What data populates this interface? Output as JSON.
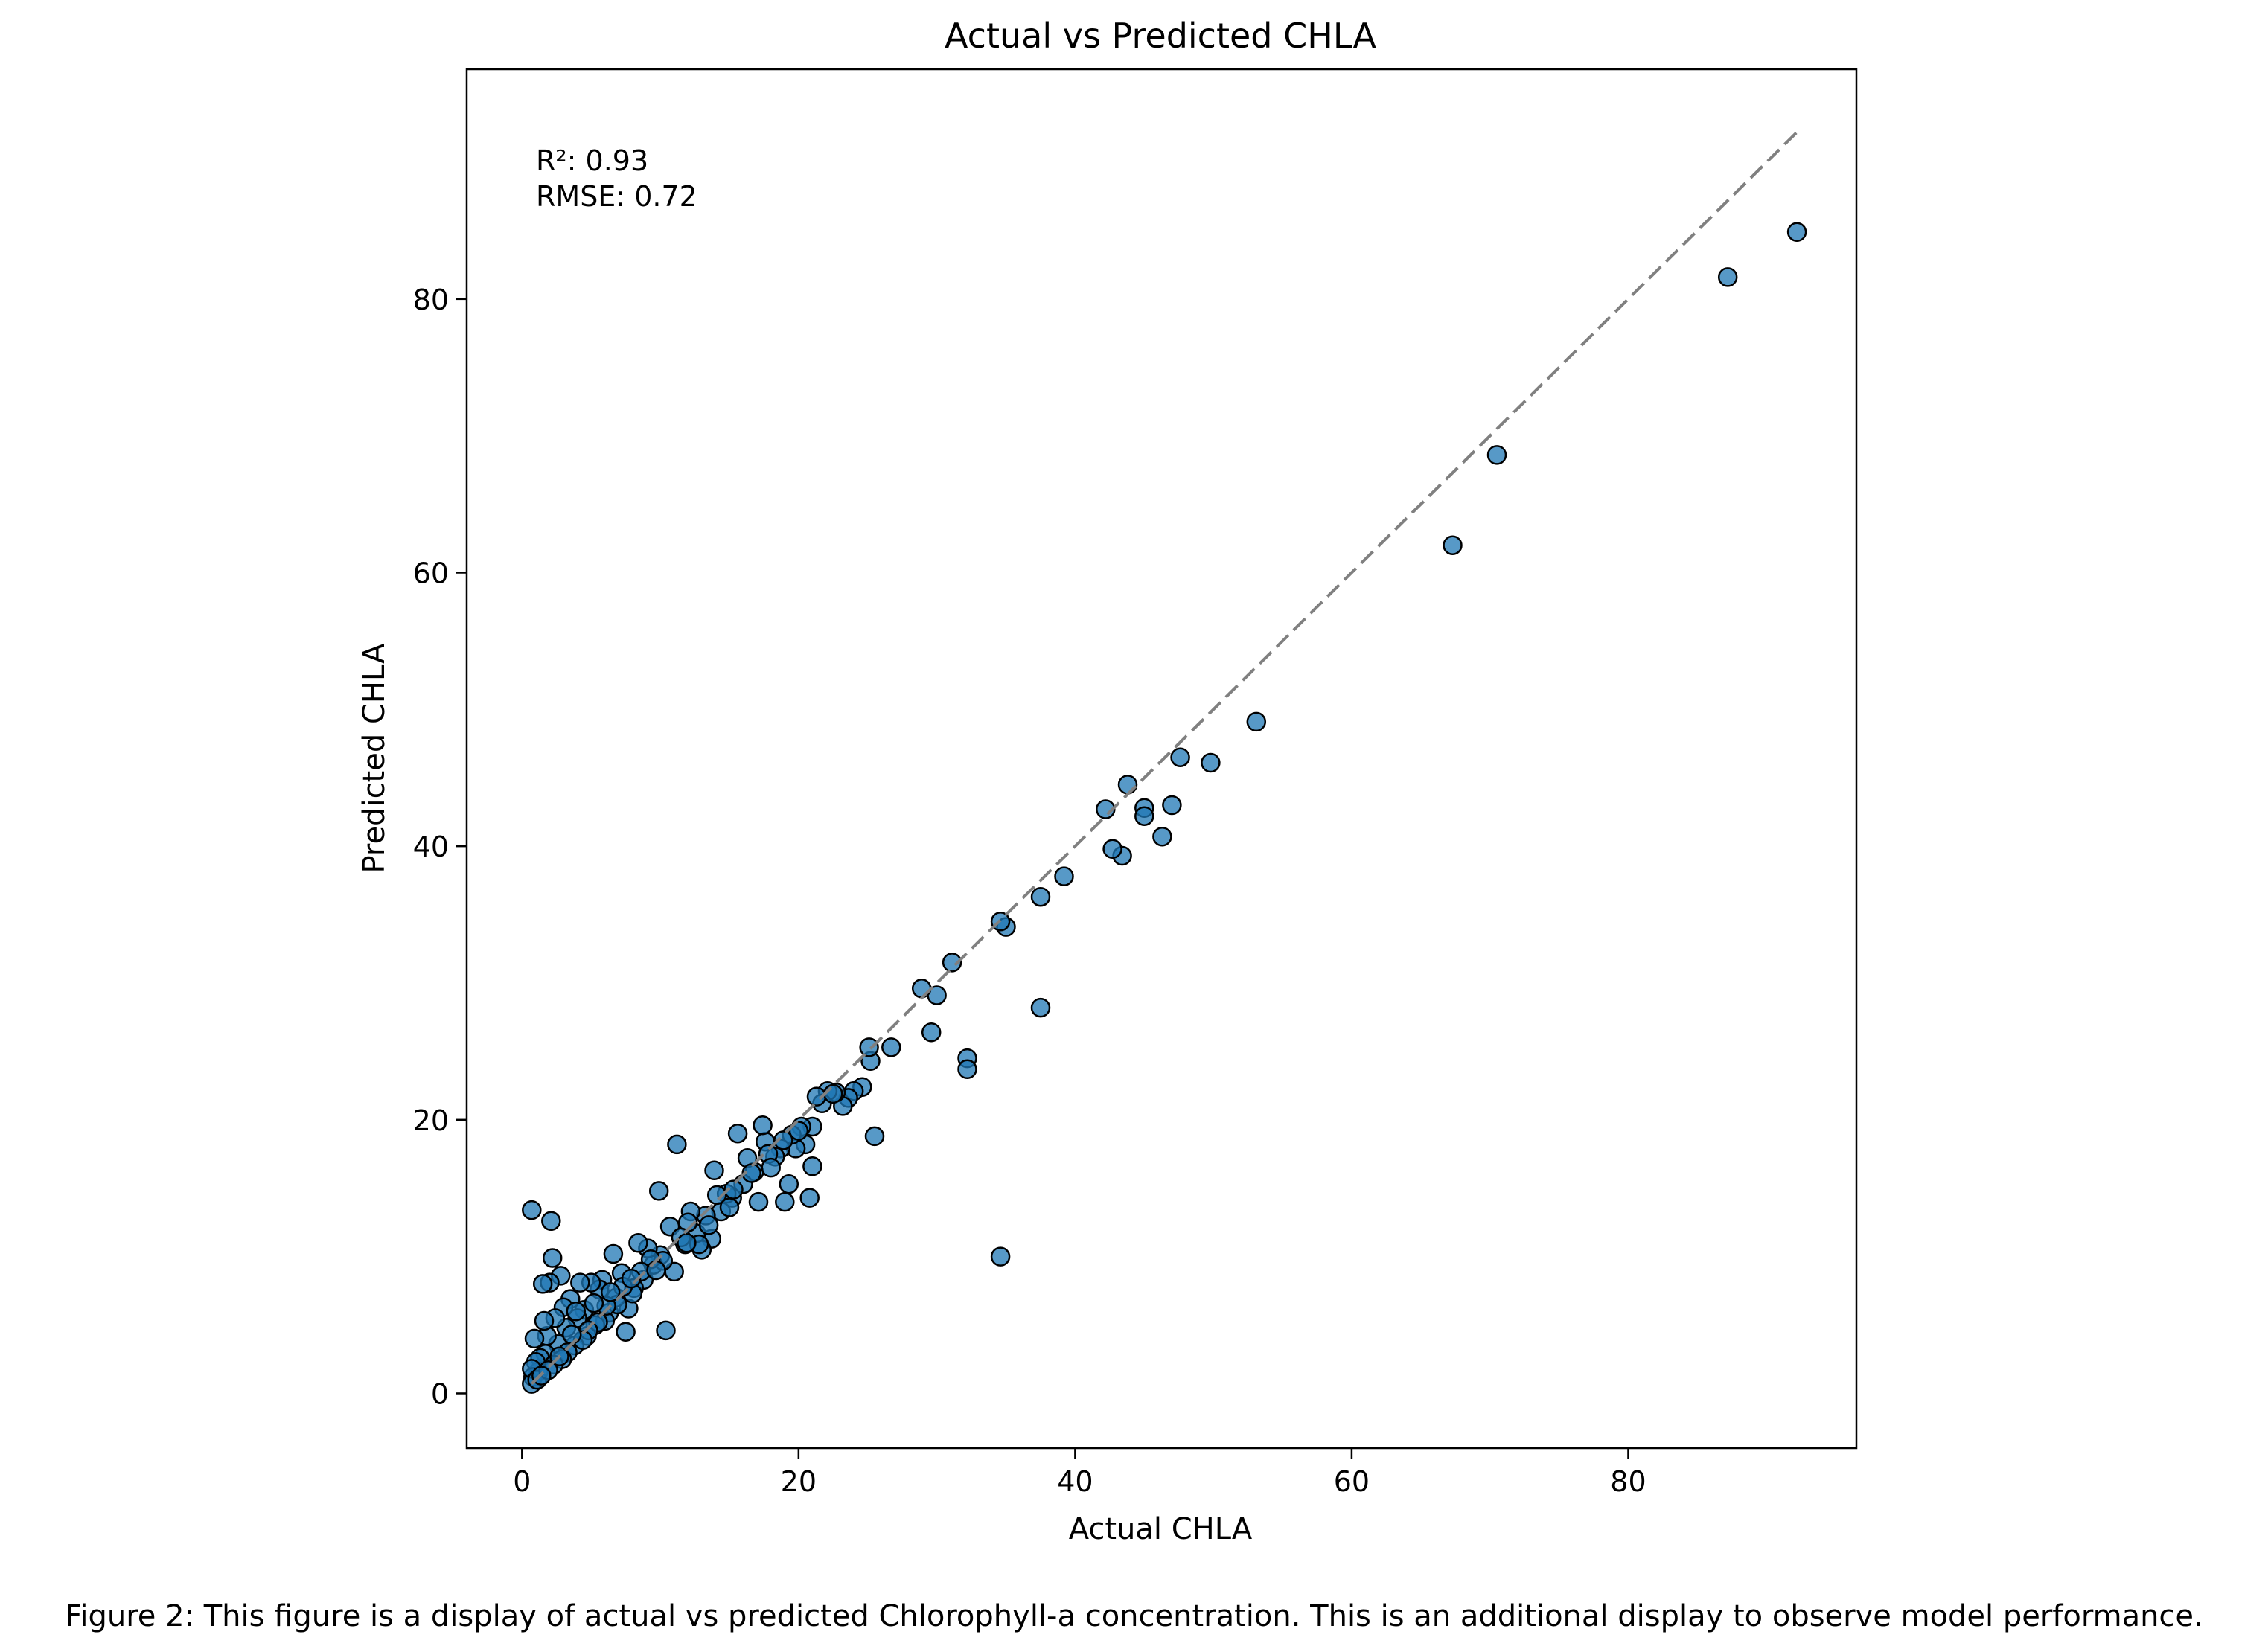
{
  "chart_data": {
    "type": "scatter",
    "title": "Actual vs Predicted CHLA",
    "xlabel": "Actual CHLA",
    "ylabel": "Predicted CHLA",
    "xlim": [
      -4,
      96.5
    ],
    "ylim": [
      -4,
      96.8
    ],
    "xticks": [
      0,
      20,
      40,
      60,
      80
    ],
    "yticks": [
      0,
      20,
      40,
      60,
      80
    ],
    "grid": false,
    "reference_line": {
      "style": "dashed",
      "color": "#808080",
      "from": [
        0.7,
        0.7
      ],
      "to": [
        92.2,
        92.2
      ]
    },
    "annotation": [
      "R²: 0.93",
      "RMSE: 0.72"
    ],
    "marker_color": "#1f77b4",
    "marker_edge": "#000000",
    "points": [
      [
        92.2,
        84.9
      ],
      [
        87.2,
        81.6
      ],
      [
        70.5,
        68.6
      ],
      [
        67.3,
        62.0
      ],
      [
        53.1,
        49.1
      ],
      [
        49.8,
        46.1
      ],
      [
        47.6,
        46.5
      ],
      [
        47.0,
        43.0
      ],
      [
        46.3,
        40.7
      ],
      [
        45.0,
        42.8
      ],
      [
        45.0,
        42.2
      ],
      [
        43.8,
        44.5
      ],
      [
        43.4,
        39.3
      ],
      [
        42.7,
        39.8
      ],
      [
        42.2,
        42.7
      ],
      [
        39.2,
        37.8
      ],
      [
        37.5,
        36.3
      ],
      [
        37.5,
        28.2
      ],
      [
        35.0,
        34.1
      ],
      [
        34.6,
        34.5
      ],
      [
        34.6,
        10.0
      ],
      [
        32.2,
        24.5
      ],
      [
        32.2,
        23.7
      ],
      [
        31.1,
        31.5
      ],
      [
        30.0,
        29.1
      ],
      [
        29.6,
        26.4
      ],
      [
        28.9,
        29.6
      ],
      [
        26.7,
        25.3
      ],
      [
        25.5,
        18.8
      ],
      [
        25.2,
        24.3
      ],
      [
        25.1,
        25.3
      ],
      [
        24.6,
        22.4
      ],
      [
        24.0,
        22.1
      ],
      [
        23.6,
        21.6
      ],
      [
        23.2,
        21.0
      ],
      [
        22.7,
        22.0
      ],
      [
        22.1,
        22.1
      ],
      [
        21.7,
        21.2
      ],
      [
        21.3,
        21.7
      ],
      [
        21.0,
        19.5
      ],
      [
        21.0,
        16.6
      ],
      [
        20.8,
        14.3
      ],
      [
        20.5,
        18.2
      ],
      [
        20.2,
        19.5
      ],
      [
        19.8,
        17.9
      ],
      [
        19.5,
        18.9
      ],
      [
        19.3,
        15.3
      ],
      [
        19.0,
        14.0
      ],
      [
        18.7,
        17.9
      ],
      [
        18.3,
        17.3
      ],
      [
        17.6,
        18.4
      ],
      [
        17.4,
        19.6
      ],
      [
        17.1,
        14.0
      ],
      [
        16.8,
        16.2
      ],
      [
        16.3,
        17.2
      ],
      [
        16.0,
        15.3
      ],
      [
        15.6,
        19.0
      ],
      [
        15.2,
        14.3
      ],
      [
        14.8,
        14.6
      ],
      [
        14.4,
        13.3
      ],
      [
        13.9,
        16.3
      ],
      [
        13.7,
        11.3
      ],
      [
        13.3,
        13.0
      ],
      [
        13.0,
        10.5
      ],
      [
        12.6,
        11.7
      ],
      [
        12.2,
        13.3
      ],
      [
        11.8,
        10.9
      ],
      [
        11.2,
        18.2
      ],
      [
        11.0,
        8.9
      ],
      [
        10.7,
        12.2
      ],
      [
        10.4,
        4.6
      ],
      [
        10.0,
        10.1
      ],
      [
        9.9,
        14.8
      ],
      [
        9.5,
        9.4
      ],
      [
        9.1,
        10.6
      ],
      [
        8.8,
        8.3
      ],
      [
        8.4,
        11.0
      ],
      [
        8.1,
        7.7
      ],
      [
        7.7,
        6.2
      ],
      [
        7.5,
        4.5
      ],
      [
        7.2,
        8.8
      ],
      [
        6.8,
        7.0
      ],
      [
        6.6,
        10.2
      ],
      [
        6.3,
        5.9
      ],
      [
        6.0,
        5.3
      ],
      [
        5.8,
        8.3
      ],
      [
        5.6,
        7.6
      ],
      [
        5.3,
        5.0
      ],
      [
        5.0,
        8.1
      ],
      [
        4.7,
        4.2
      ],
      [
        4.5,
        6.1
      ],
      [
        4.2,
        8.1
      ],
      [
        4.0,
        5.5
      ],
      [
        3.8,
        3.5
      ],
      [
        3.5,
        6.9
      ],
      [
        3.2,
        4.8
      ],
      [
        3.0,
        6.3
      ],
      [
        2.8,
        8.6
      ],
      [
        2.6,
        3.6
      ],
      [
        2.4,
        5.5
      ],
      [
        2.2,
        9.9
      ],
      [
        2.1,
        12.6
      ],
      [
        2.0,
        8.1
      ],
      [
        1.8,
        4.2
      ],
      [
        1.7,
        2.9
      ],
      [
        1.6,
        5.3
      ],
      [
        1.5,
        8.0
      ],
      [
        1.3,
        2.6
      ],
      [
        1.2,
        1.6
      ],
      [
        1.0,
        2.3
      ],
      [
        0.9,
        4.0
      ],
      [
        0.8,
        1.2
      ],
      [
        0.7,
        13.4
      ],
      [
        0.7,
        0.7
      ],
      [
        0.7,
        1.8
      ],
      [
        1.1,
        1.0
      ],
      [
        12.0,
        12.5
      ],
      [
        14.1,
        14.5
      ],
      [
        15.3,
        14.9
      ],
      [
        17.8,
        17.5
      ],
      [
        18.9,
        18.5
      ],
      [
        22.5,
        21.9
      ],
      [
        10.2,
        9.7
      ],
      [
        9.3,
        9.8
      ],
      [
        8.6,
        8.9
      ],
      [
        6.9,
        6.5
      ],
      [
        5.5,
        5.2
      ],
      [
        4.8,
        4.6
      ],
      [
        3.3,
        3.0
      ],
      [
        2.9,
        2.5
      ],
      [
        2.3,
        2.1
      ],
      [
        1.9,
        1.7
      ],
      [
        11.5,
        11.4
      ],
      [
        13.5,
        12.3
      ],
      [
        16.6,
        16.1
      ],
      [
        12.8,
        10.9
      ],
      [
        8.0,
        7.3
      ],
      [
        7.3,
        7.8
      ],
      [
        4.4,
        3.9
      ],
      [
        3.6,
        4.3
      ],
      [
        1.4,
        1.3
      ],
      [
        2.7,
        2.7
      ],
      [
        6.1,
        6.4
      ],
      [
        9.7,
        9.0
      ],
      [
        11.9,
        11.0
      ],
      [
        15.0,
        13.6
      ],
      [
        18.0,
        16.5
      ],
      [
        20.0,
        19.2
      ],
      [
        3.9,
        6.0
      ],
      [
        5.2,
        6.6
      ],
      [
        6.4,
        7.4
      ],
      [
        7.9,
        8.4
      ]
    ]
  },
  "figure_caption": "Figure 2: This figure is a display of actual vs predicted Chlorophyll-a concentration. This is an additional display to observe model performance."
}
